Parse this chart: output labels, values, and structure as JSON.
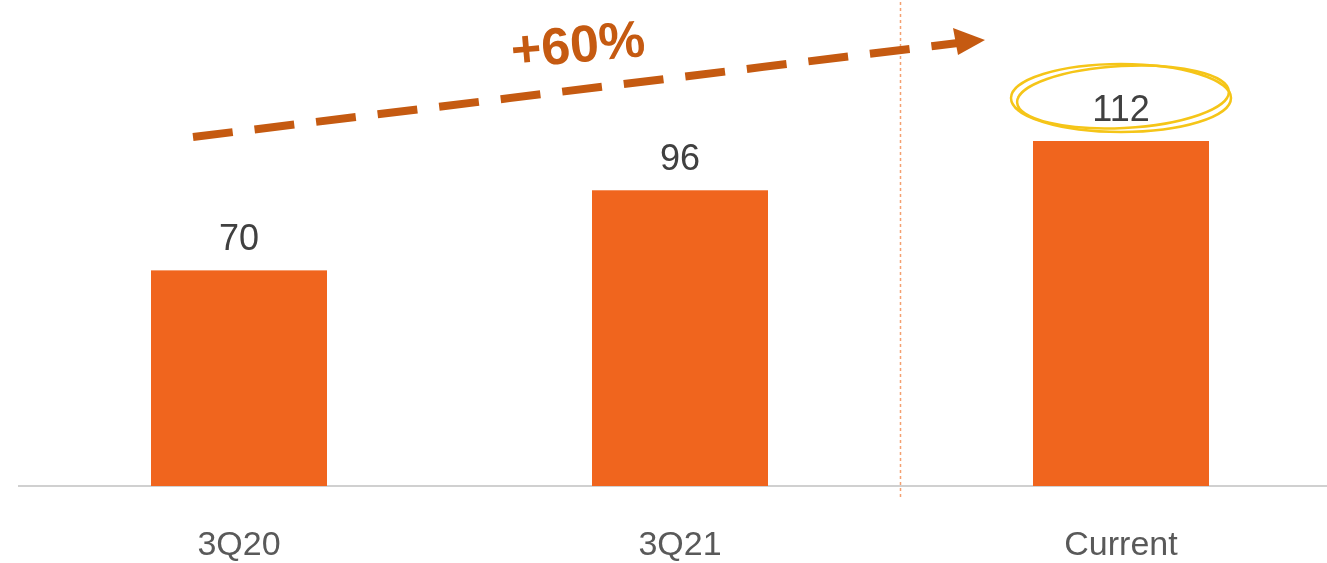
{
  "chart_data": {
    "type": "bar",
    "categories": [
      "3Q20",
      "3Q21",
      "Current"
    ],
    "values": [
      70,
      96,
      112
    ],
    "color": "#f0651e",
    "data_labels": true,
    "annotations": [
      "+60%"
    ]
  }
}
